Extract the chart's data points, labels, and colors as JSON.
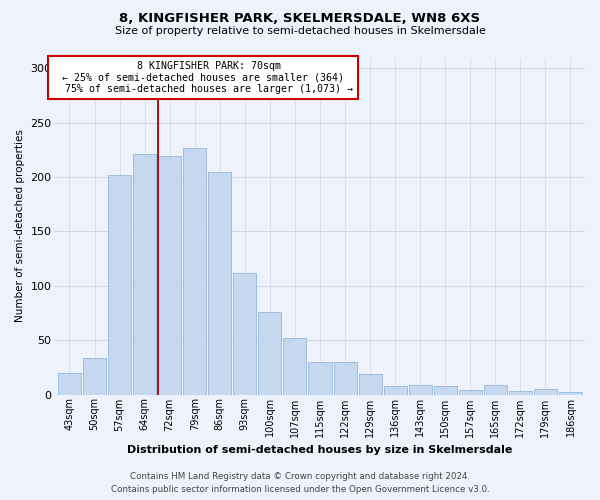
{
  "title": "8, KINGFISHER PARK, SKELMERSDALE, WN8 6XS",
  "subtitle": "Size of property relative to semi-detached houses in Skelmersdale",
  "xlabel": "Distribution of semi-detached houses by size in Skelmersdale",
  "ylabel": "Number of semi-detached properties",
  "categories": [
    "43sqm",
    "50sqm",
    "57sqm",
    "64sqm",
    "72sqm",
    "79sqm",
    "86sqm",
    "93sqm",
    "100sqm",
    "107sqm",
    "115sqm",
    "122sqm",
    "129sqm",
    "136sqm",
    "143sqm",
    "150sqm",
    "157sqm",
    "165sqm",
    "172sqm",
    "179sqm",
    "186sqm"
  ],
  "values": [
    20,
    34,
    202,
    221,
    219,
    227,
    205,
    112,
    76,
    52,
    30,
    30,
    19,
    8,
    9,
    8,
    4,
    9,
    3,
    5,
    2
  ],
  "bar_color": "#c5d8f0",
  "bar_edge_color": "#a0bedd",
  "marker_line_color": "#aa0000",
  "annotation_box_edge_color": "#cc0000",
  "ylim": [
    0,
    310
  ],
  "yticks": [
    0,
    50,
    100,
    150,
    200,
    250,
    300
  ],
  "marker_label": "8 KINGFISHER PARK: 70sqm",
  "smaller_pct": "25%",
  "smaller_count": "364",
  "larger_pct": "75%",
  "larger_count": "1,073",
  "footer_line1": "Contains HM Land Registry data © Crown copyright and database right 2024.",
  "footer_line2": "Contains public sector information licensed under the Open Government Licence v3.0.",
  "bg_color": "#eef2fa",
  "grid_color": "#d0d8ea"
}
